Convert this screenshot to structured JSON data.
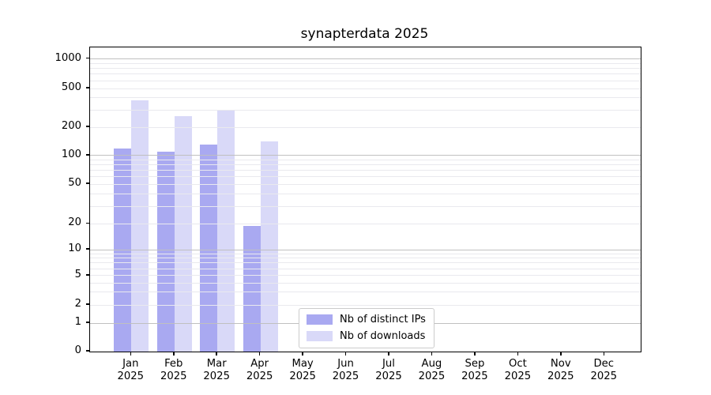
{
  "title": "synapterdata 2025",
  "chart_data": {
    "type": "bar",
    "title": "synapterdata 2025",
    "y_scale": "symlog",
    "ylim": [
      0,
      1300
    ],
    "grid": true,
    "legend_position": "lower center",
    "year": "2025",
    "months": [
      "Jan",
      "Feb",
      "Mar",
      "Apr",
      "May",
      "Jun",
      "Jul",
      "Aug",
      "Sep",
      "Oct",
      "Nov",
      "Dec"
    ],
    "categories": [
      "Jan 2025",
      "Feb 2025",
      "Mar 2025",
      "Apr 2025",
      "May 2025",
      "Jun 2025",
      "Jul 2025",
      "Aug 2025",
      "Sep 2025",
      "Oct 2025",
      "Nov 2025",
      "Dec 2025"
    ],
    "y_ticks": [
      0,
      1,
      2,
      5,
      10,
      20,
      50,
      100,
      200,
      500,
      1000
    ],
    "series": [
      {
        "name": "Nb of distinct IPs",
        "color": "#a9a9f1",
        "values": [
          118,
          111,
          132,
          19,
          null,
          null,
          null,
          null,
          null,
          null,
          null,
          null
        ]
      },
      {
        "name": "Nb of downloads",
        "color": "#d9d9f8",
        "values": [
          380,
          258,
          296,
          141,
          null,
          null,
          null,
          null,
          null,
          null,
          null,
          null
        ]
      }
    ]
  },
  "colors": {
    "distinct_ips_bar": "#a9a9f1",
    "downloads_bar": "#d9d9f8",
    "major_gridline": "#c0c0c0",
    "minor_gridline": "#e9e9ee",
    "axis": "#000000",
    "legend_border": "#cccccc"
  }
}
